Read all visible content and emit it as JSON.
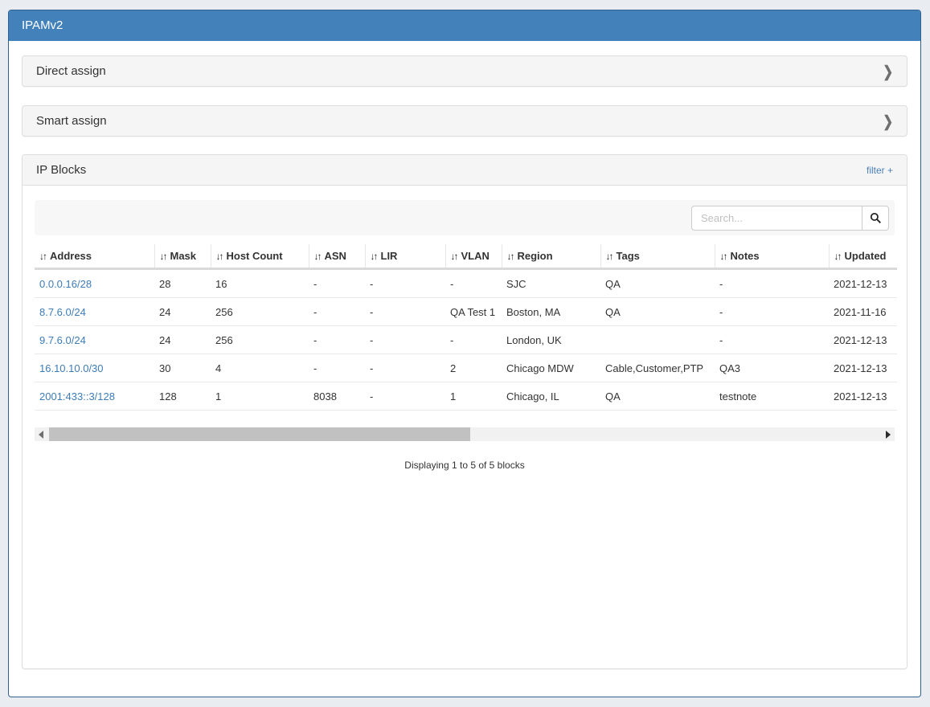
{
  "app": {
    "title": "IPAMv2"
  },
  "panels": {
    "direct_assign": {
      "title": "Direct assign",
      "chevron": "❯"
    },
    "smart_assign": {
      "title": "Smart assign",
      "chevron": "❯"
    },
    "ip_blocks": {
      "title": "IP Blocks",
      "filter_label": "filter +",
      "search": {
        "placeholder": "Search...",
        "value": ""
      },
      "table": {
        "sort_icon": "↓↑",
        "columns": [
          "Address",
          "Mask",
          "Host Count",
          "ASN",
          "LIR",
          "VLAN",
          "Region",
          "Tags",
          "Notes",
          "Updated"
        ],
        "rows": [
          [
            "0.0.0.16/28",
            "28",
            "16",
            "-",
            "-",
            "-",
            "SJC",
            "QA",
            "-",
            "2021-12-13"
          ],
          [
            "8.7.6.0/24",
            "24",
            "256",
            "-",
            "-",
            "QA Test 1",
            "Boston, MA",
            "QA",
            "-",
            "2021-11-16"
          ],
          [
            "9.7.6.0/24",
            "24",
            "256",
            "-",
            "-",
            "-",
            "London, UK",
            "",
            "-",
            "2021-12-13"
          ],
          [
            "16.10.10.0/30",
            "30",
            "4",
            "-",
            "-",
            "2",
            "Chicago MDW",
            "Cable,Customer,PTP",
            "QA3",
            "2021-12-13"
          ],
          [
            "2001:433::3/128",
            "128",
            "1",
            "8038",
            "-",
            "1",
            "Chicago, IL",
            "QA",
            "testnote",
            "2021-12-13"
          ]
        ],
        "summary": "Displaying 1 to 5 of 5 blocks"
      }
    }
  },
  "colors": {
    "header_blue": "#4381bb",
    "frame_border_blue": "#31618f",
    "link_blue": "#3d7cb8",
    "panel_gray": "#f5f5f5",
    "page_background": "#e9edf2"
  }
}
